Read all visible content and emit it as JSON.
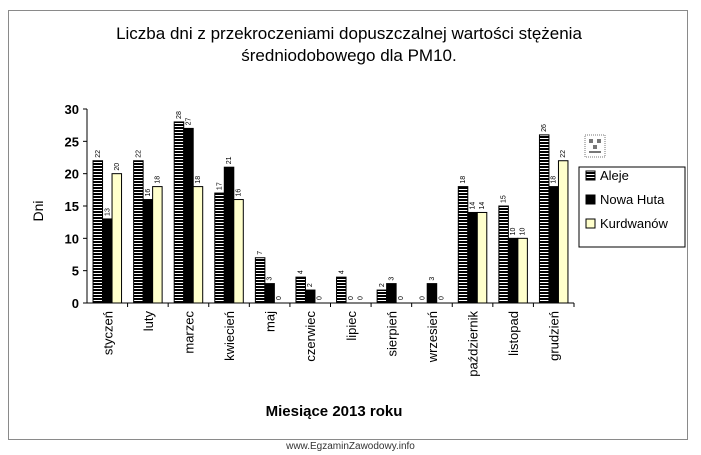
{
  "chart_data": {
    "type": "bar",
    "title_line1": "Liczba dni z przekroczeniami  dopuszczalnej  wartości stężenia",
    "title_line2": "średniodobowego dla PM10.",
    "xlabel": "Miesiące 2013 roku",
    "ylabel": "Dni",
    "ylim": [
      0,
      30
    ],
    "yticks": [
      "0",
      "5",
      "10",
      "15",
      "20",
      "25",
      "30"
    ],
    "categories": [
      "styczeń",
      "luty",
      "marzec",
      "kwiecień",
      "maj",
      "czerwiec",
      "lipiec",
      "sierpień",
      "wrzesień",
      "październik",
      "listopad",
      "grudzień"
    ],
    "series": [
      {
        "name": "Aleje",
        "values": [
          22,
          22,
          28,
          17,
          7,
          4,
          4,
          2,
          0,
          18,
          15,
          26
        ],
        "style": "black-with-white-stripes"
      },
      {
        "name": "Nowa Huta",
        "values": [
          13,
          16,
          27,
          21,
          3,
          2,
          0,
          3,
          3,
          14,
          10,
          18
        ],
        "style": "solid-black"
      },
      {
        "name": "Kurdwanów",
        "values": [
          20,
          18,
          18,
          16,
          0,
          0,
          0,
          0,
          0,
          14,
          10,
          22
        ],
        "style": "pale-yellow"
      }
    ],
    "legend_position": "right",
    "grid": false
  },
  "watermark": "www.EgzaminZawodowy.info",
  "colors": {
    "black": "#000000",
    "stripe": "#ffffff",
    "yellow": "#ffffcc"
  }
}
